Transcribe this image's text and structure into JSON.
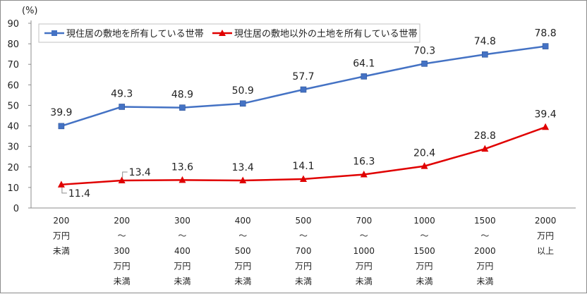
{
  "chart_data": {
    "type": "line",
    "unit_label": "(%)",
    "ylim": [
      0,
      90
    ],
    "yticks": [
      0,
      10,
      20,
      30,
      40,
      50,
      60,
      70,
      80,
      90
    ],
    "grid": false,
    "legend_position": "top-left",
    "categories": [
      [
        "200",
        "万円",
        "未満"
      ],
      [
        "200",
        "〜",
        "300",
        "万円",
        "未満"
      ],
      [
        "300",
        "〜",
        "400",
        "万円",
        "未満"
      ],
      [
        "400",
        "〜",
        "500",
        "万円",
        "未満"
      ],
      [
        "500",
        "〜",
        "700",
        "万円",
        "未満"
      ],
      [
        "700",
        "〜",
        "1000",
        "万円",
        "未満"
      ],
      [
        "1000",
        "〜",
        "1500",
        "万円",
        "未満"
      ],
      [
        "1500",
        "〜",
        "2000",
        "万円",
        "未満"
      ],
      [
        "2000",
        "万円",
        "以上"
      ]
    ],
    "series": [
      {
        "name": "現住居の敷地を所有している世帯",
        "color": "#4472C4",
        "marker": "square",
        "values": [
          39.9,
          49.3,
          48.9,
          50.9,
          57.7,
          64.1,
          70.3,
          74.8,
          78.8
        ],
        "labels": [
          "39.9",
          "49.3",
          "48.9",
          "50.9",
          "57.7",
          "64.1",
          "70.3",
          "74.8",
          "78.8"
        ]
      },
      {
        "name": "現住居の敷地以外の土地を所有している世帯",
        "color": "#E00000",
        "marker": "triangle",
        "values": [
          11.4,
          13.4,
          13.6,
          13.4,
          14.1,
          16.3,
          20.4,
          28.8,
          39.4
        ],
        "labels": [
          "11.4",
          "13.4",
          "13.6",
          "13.4",
          "14.1",
          "16.3",
          "20.4",
          "28.8",
          "39.4"
        ]
      }
    ]
  }
}
